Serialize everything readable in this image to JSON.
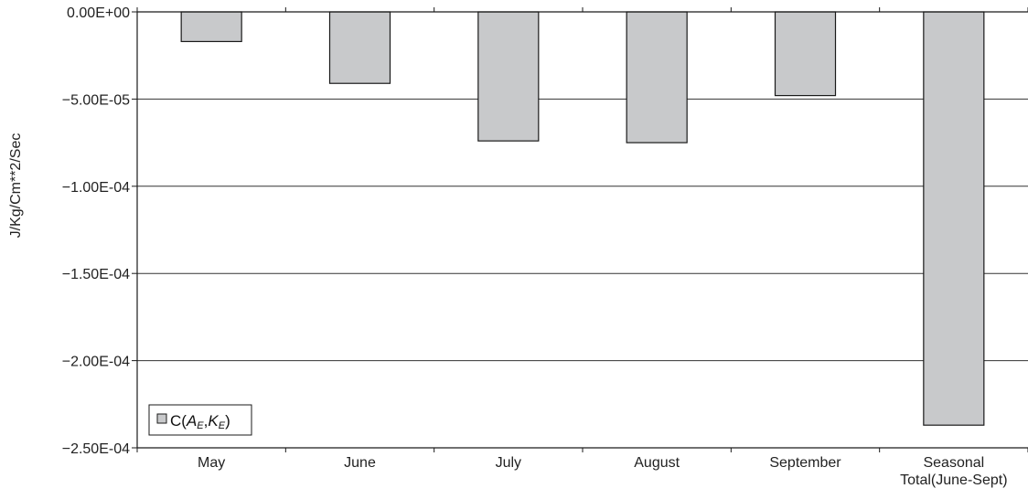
{
  "chart_data": {
    "type": "bar",
    "categories": [
      "May",
      "June",
      "July",
      "August",
      "September",
      "Seasonal\nTotal(June-Sept)"
    ],
    "series": [
      {
        "name": "C(AE,KE)",
        "values": [
          -1.7e-05,
          -4.1e-05,
          -7.4e-05,
          -7.5e-05,
          -4.8e-05,
          -0.000237
        ]
      }
    ],
    "ylabel": "J/Kg/Cm**2/Sec",
    "xlabel": "",
    "ylim": [
      -0.00025,
      0
    ],
    "yticks": [
      0,
      -5e-05,
      -0.0001,
      -0.00015,
      -0.0002,
      -0.00025
    ],
    "ytick_labels": [
      "0.00E+00",
      "−5.00E-05",
      "−1.00E-04",
      "−1.50E-04",
      "−2.00E-04",
      "−2.50E-04"
    ],
    "grid": true,
    "legend": {
      "position": "bottom-left",
      "label_main": "C(",
      "label_a": "A",
      "label_a_sub": "E",
      "label_sep": ",",
      "label_k": "K",
      "label_k_sub": "E",
      "label_close": ")"
    },
    "colors": {
      "bar_fill": "#c8c9cb",
      "bar_stroke": "#1a1a1a",
      "grid": "#333333",
      "axis": "#1a1a1a"
    }
  }
}
